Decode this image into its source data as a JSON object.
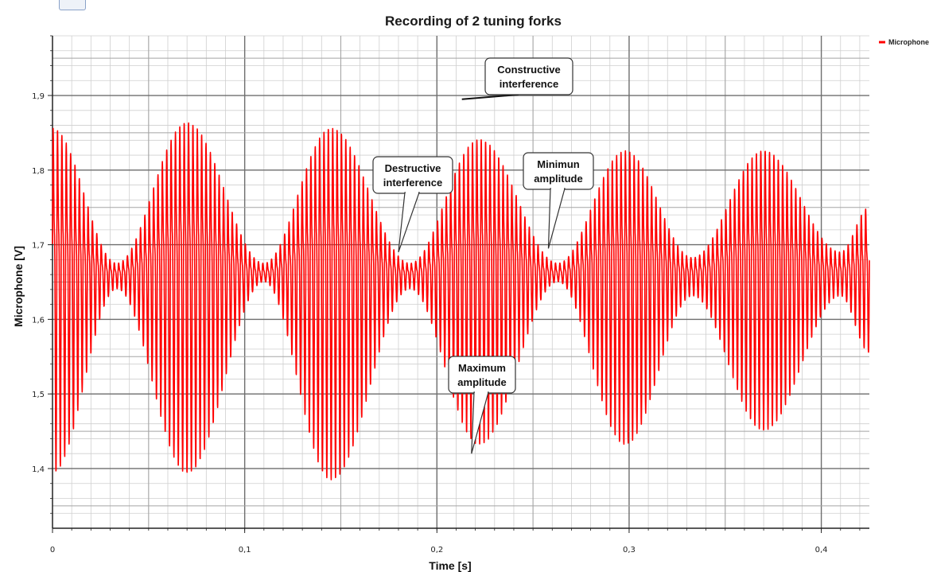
{
  "chart_data": {
    "type": "line",
    "title": "Recording of 2 tuning forks",
    "xlabel": "Time [s]",
    "ylabel": "Microphone [V]",
    "xlim": [
      0,
      0.425
    ],
    "ylim": [
      1.32,
      1.98
    ],
    "x_ticks": [
      0,
      0.1,
      0.2,
      0.3,
      0.4
    ],
    "x_tick_labels": [
      "0",
      "0,1",
      "0,2",
      "0,3",
      "0,4"
    ],
    "y_ticks": [
      1.4,
      1.5,
      1.6,
      1.7,
      1.8,
      1.9
    ],
    "y_tick_labels": [
      "1,4",
      "1,5",
      "1,6",
      "1,7",
      "1,8",
      "1,9"
    ],
    "grid": true,
    "legend_position": "top-right",
    "series": [
      {
        "name": "Microphone",
        "color": "#ff0000",
        "center": 1.66,
        "amplitude_max": 0.27,
        "beat_period_s": 0.0765,
        "first_minimum_s": 0.0335,
        "carrier_frequency_hz": 440,
        "envelope_points": [
          {
            "x": 0.0,
            "ymin": 1.38,
            "ymax": 1.92
          },
          {
            "x": 0.0335,
            "ymin": 1.64,
            "ymax": 1.68
          },
          {
            "x": 0.07,
            "ymin": 1.38,
            "ymax": 1.93
          },
          {
            "x": 0.11,
            "ymin": 1.65,
            "ymax": 1.68
          },
          {
            "x": 0.145,
            "ymin": 1.37,
            "ymax": 1.92
          },
          {
            "x": 0.186,
            "ymin": 1.64,
            "ymax": 1.68
          },
          {
            "x": 0.222,
            "ymin": 1.42,
            "ymax": 1.9
          },
          {
            "x": 0.263,
            "ymin": 1.65,
            "ymax": 1.68
          },
          {
            "x": 0.298,
            "ymin": 1.42,
            "ymax": 1.88
          },
          {
            "x": 0.333,
            "ymin": 1.63,
            "ymax": 1.69
          },
          {
            "x": 0.37,
            "ymin": 1.44,
            "ymax": 1.88
          },
          {
            "x": 0.41,
            "ymin": 1.63,
            "ymax": 1.7
          },
          {
            "x": 0.425,
            "ymin": 1.55,
            "ymax": 1.78
          }
        ]
      }
    ],
    "annotations": [
      {
        "lines": [
          "Constructive",
          "interference"
        ],
        "x": 0.213,
        "y": 1.895
      },
      {
        "lines": [
          "Destructive",
          "interference"
        ],
        "x": 0.18,
        "y": 1.69
      },
      {
        "lines": [
          "Minimun",
          "amplitude"
        ],
        "x": 0.258,
        "y": 1.695
      },
      {
        "lines": [
          "Maximum",
          "amplitude"
        ],
        "x": 0.218,
        "y": 1.42
      }
    ]
  }
}
